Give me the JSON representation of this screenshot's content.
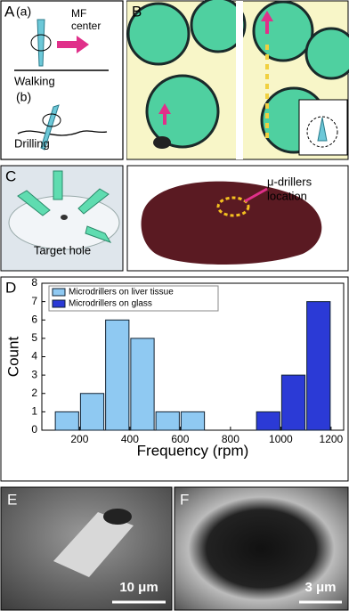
{
  "panels": {
    "a": {
      "label": "A",
      "sub_a": "(a)",
      "mf": "MF",
      "center": "center",
      "walking": "Walking",
      "sub_b": "(b)",
      "drilling": "Drilling"
    },
    "b": {
      "label": "B"
    },
    "c": {
      "label": "C",
      "target": "Target hole",
      "drillers": "μ-drillers",
      "location": "location"
    },
    "e": {
      "label": "E",
      "scale": "10 μm"
    },
    "f": {
      "label": "F",
      "scale": "3 μm"
    }
  },
  "chart_data": {
    "type": "histogram",
    "panel_label": "D",
    "x_label": "Frequency (rpm)",
    "y_label": "Count",
    "series": [
      {
        "name": "Microdrillers on liver tissue",
        "color": "#8fc9f2",
        "bins": [
          100,
          200,
          300,
          400,
          500,
          600,
          700
        ],
        "values": [
          1,
          2,
          6,
          5,
          1,
          1
        ]
      },
      {
        "name": "Microdrillers on glass",
        "color": "#2b3ad6",
        "bins": [
          900,
          1000,
          1100,
          1200
        ],
        "values": [
          1,
          3,
          7
        ]
      }
    ],
    "xlim": [
      50,
      1250
    ],
    "xticks": [
      200,
      400,
      600,
      800,
      1000,
      1200
    ],
    "ylim": [
      0,
      8
    ],
    "yticks": [
      0,
      1,
      2,
      3,
      4,
      5,
      6,
      7,
      8
    ],
    "legend": "top-left"
  }
}
